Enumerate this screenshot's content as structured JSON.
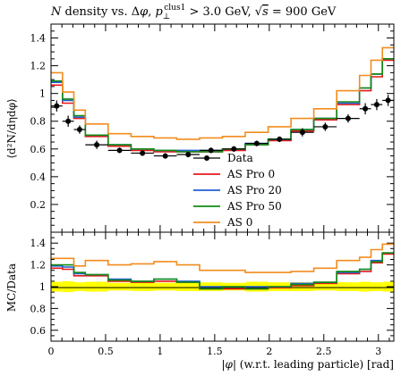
{
  "chart_data": [
    {
      "type": "line",
      "panel": "main",
      "title": "N density vs. Δφ, p⊥clus1 > 3.0 GeV, √s = 900 GeV",
      "title_parts": {
        "prefix": "N density vs. Δ",
        "phi": "φ",
        "sep": ", ",
        "p": "p",
        "sub": "⊥",
        "sup": "clus1",
        "cut": " > 3.0 GeV, ",
        "sqrt": "√",
        "s": "s",
        "energy": " = 900 GeV"
      },
      "ylabel": "⟨d²N/dηdφ⟩",
      "xlim": [
        0,
        3.1416
      ],
      "ylim": [
        0,
        1.5
      ],
      "yticks": [
        0.2,
        0.4,
        0.6,
        0.8,
        1,
        1.2,
        1.4
      ],
      "ytick_labels": [
        "0.2",
        "0.4",
        "0.6",
        "0.8",
        "1",
        "1.2",
        "1.4"
      ],
      "bin_edges": [
        0,
        0.1047,
        0.2094,
        0.3142,
        0.5236,
        0.733,
        0.9425,
        1.1519,
        1.3614,
        1.5708,
        1.7802,
        1.9897,
        2.1991,
        2.4086,
        2.618,
        2.8274,
        2.9322,
        3.0369,
        3.1416
      ],
      "legend_position": "center-bottom",
      "data": {
        "name": "Data",
        "color": "#000000",
        "x": [
          0.052,
          0.157,
          0.262,
          0.419,
          0.628,
          0.838,
          1.047,
          1.257,
          1.466,
          1.676,
          1.885,
          2.094,
          2.304,
          2.513,
          2.723,
          2.88,
          2.985,
          3.089
        ],
        "y": [
          0.91,
          0.8,
          0.74,
          0.63,
          0.59,
          0.57,
          0.55,
          0.56,
          0.59,
          0.6,
          0.64,
          0.67,
          0.72,
          0.76,
          0.82,
          0.89,
          0.92,
          0.95
        ],
        "yerr": [
          0.04,
          0.04,
          0.03,
          0.03,
          0.02,
          0.02,
          0.02,
          0.02,
          0.02,
          0.02,
          0.02,
          0.02,
          0.03,
          0.03,
          0.03,
          0.04,
          0.04,
          0.04
        ]
      },
      "series": [
        {
          "name": "AS Pro 0",
          "color": "#e41a1c",
          "values": [
            1.06,
            0.93,
            0.82,
            0.69,
            0.62,
            0.59,
            0.58,
            0.58,
            0.58,
            0.59,
            0.63,
            0.66,
            0.73,
            0.81,
            0.92,
            1.02,
            1.12,
            1.24
          ]
        },
        {
          "name": "AS Pro 20",
          "color": "#1f5fd6",
          "values": [
            1.08,
            0.95,
            0.83,
            0.7,
            0.63,
            0.6,
            0.59,
            0.59,
            0.59,
            0.6,
            0.64,
            0.67,
            0.74,
            0.82,
            0.93,
            1.04,
            1.14,
            1.25
          ]
        },
        {
          "name": "AS Pro 50",
          "color": "#138b13",
          "values": [
            1.09,
            0.96,
            0.84,
            0.7,
            0.63,
            0.6,
            0.59,
            0.58,
            0.58,
            0.6,
            0.63,
            0.67,
            0.74,
            0.82,
            0.94,
            1.04,
            1.14,
            1.25
          ]
        },
        {
          "name": "AS 0",
          "color": "#f28c1e",
          "values": [
            1.15,
            1.01,
            0.88,
            0.78,
            0.71,
            0.69,
            0.68,
            0.67,
            0.68,
            0.69,
            0.72,
            0.76,
            0.82,
            0.89,
            1.02,
            1.13,
            1.24,
            1.33
          ]
        }
      ]
    },
    {
      "type": "line",
      "panel": "ratio",
      "xlabel_parts": {
        "bar_open": "|",
        "phi": "φ",
        "bar_close": "|",
        "rest": " (w.r.t. leading particle) [rad]"
      },
      "ylabel": "MC/Data",
      "xlim": [
        0,
        3.1416
      ],
      "ylim": [
        0.5,
        1.5
      ],
      "xticks": [
        0,
        0.5,
        1,
        1.5,
        2,
        2.5,
        3
      ],
      "xtick_labels": [
        "0",
        "0.5",
        "1",
        "1.5",
        "2",
        "2.5",
        "3"
      ],
      "yticks": [
        0.6,
        0.8,
        1,
        1.2,
        1.4
      ],
      "ytick_labels": [
        "0.6",
        "0.8",
        "1",
        "1.2",
        "1.4"
      ],
      "band_color": "#ffff00",
      "band": [
        0.045,
        0.05,
        0.04,
        0.045,
        0.035,
        0.04,
        0.035,
        0.04,
        0.04,
        0.035,
        0.045,
        0.04,
        0.04,
        0.035,
        0.04,
        0.045,
        0.04,
        0.045
      ],
      "series": [
        {
          "name": "AS Pro 0",
          "color": "#e41a1c",
          "values": [
            1.17,
            1.16,
            1.1,
            1.1,
            1.05,
            1.04,
            1.05,
            1.04,
            0.98,
            0.98,
            0.98,
            0.99,
            1.01,
            1.03,
            1.12,
            1.14,
            1.22,
            1.3
          ]
        },
        {
          "name": "AS Pro 20",
          "color": "#1f5fd6",
          "values": [
            1.19,
            1.18,
            1.12,
            1.11,
            1.07,
            1.05,
            1.07,
            1.05,
            1.0,
            1.0,
            1.0,
            1.0,
            1.03,
            1.04,
            1.13,
            1.16,
            1.24,
            1.31
          ]
        },
        {
          "name": "AS Pro 50",
          "color": "#138b13",
          "values": [
            1.2,
            1.2,
            1.13,
            1.11,
            1.06,
            1.05,
            1.07,
            1.04,
            0.98,
            1.0,
            0.98,
            1.0,
            1.02,
            1.04,
            1.14,
            1.16,
            1.23,
            1.31
          ]
        },
        {
          "name": "AS 0",
          "color": "#f28c1e",
          "values": [
            1.26,
            1.26,
            1.19,
            1.24,
            1.2,
            1.21,
            1.23,
            1.2,
            1.15,
            1.15,
            1.13,
            1.13,
            1.14,
            1.17,
            1.24,
            1.27,
            1.34,
            1.39
          ]
        }
      ]
    }
  ]
}
